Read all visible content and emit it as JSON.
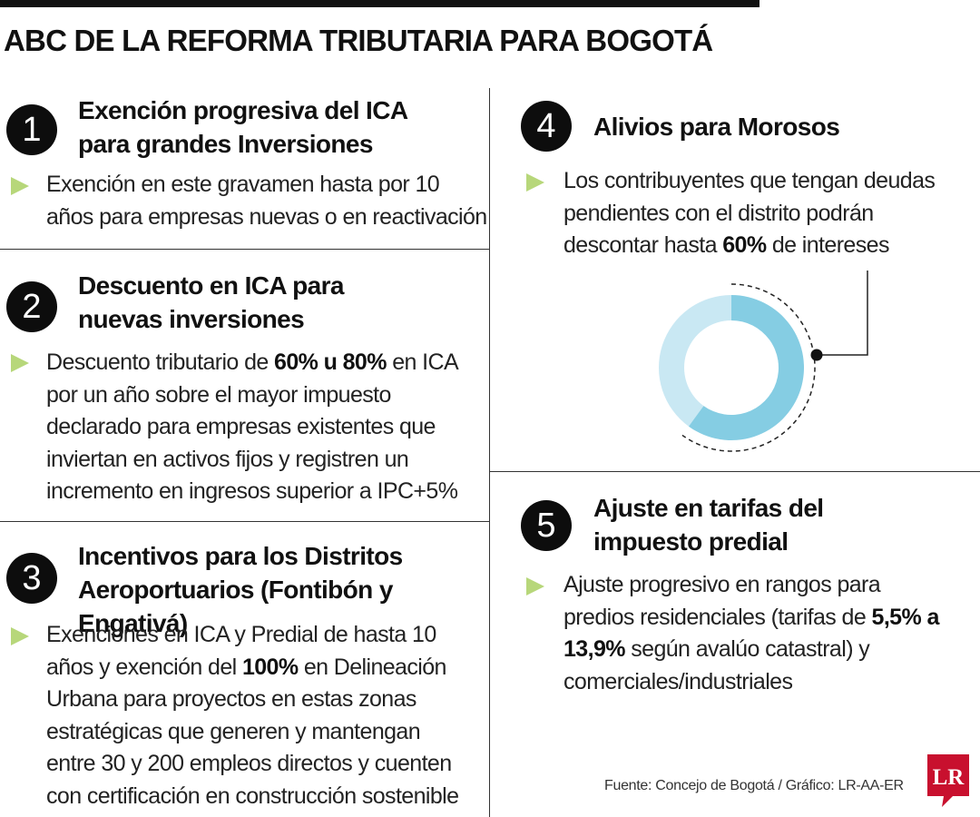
{
  "title": "ABC DE LA REFORMA TRIBUTARIA PARA BOGOTÁ",
  "sections": [
    {
      "number": "1",
      "title_lines": [
        "Exención progresiva del ICA",
        "para grandes Inversiones"
      ],
      "body": "Exención en este gravamen hasta por 10 años para empresas nuevas o en reactivación"
    },
    {
      "number": "2",
      "title_lines": [
        "Descuento en ICA para",
        "nuevas inversiones"
      ],
      "body_before": "Descuento tributario de ",
      "body_bold": "60% u 80%",
      "body_after": " en ICA por un año sobre el mayor impuesto declarado para empresas existentes que inviertan en activos fijos y registren un incremento en ingresos superior a IPC+5%"
    },
    {
      "number": "3",
      "title_lines": [
        "Incentivos para los Distritos",
        "Aeroportuarios (Fontibón y Engativá)"
      ],
      "body_before": "Exenciones en ICA y Predial de hasta 10 años y exención del ",
      "body_bold": "100%",
      "body_after": " en Delineación Urbana para proyectos en estas zonas estratégicas que generen y mantengan entre 30 y 200 empleos directos y cuenten con certificación en construcción sostenible"
    },
    {
      "number": "4",
      "title_lines": [
        "Alivios para Morosos"
      ],
      "body_before": "Los contribuyentes que tengan deudas pendientes con el distrito podrán descontar hasta ",
      "body_bold": "60%",
      "body_after": " de intereses"
    },
    {
      "number": "5",
      "title_lines": [
        "Ajuste en tarifas del",
        "impuesto predial"
      ],
      "body_before": "Ajuste progresivo en rangos para predios residenciales (tarifas de ",
      "body_bold": "5,5% a 13,9%",
      "body_after": " según avalúo catastral) y comerciales/industriales"
    }
  ],
  "donut": {
    "highlight_fraction": 0.6,
    "colors": {
      "highlight": "#85cde3",
      "rest": "#c9e8f3",
      "bullet": "#b7d77a"
    }
  },
  "source": "Fuente: Concejo de Bogotá / Gráfico: LR-AA-ER",
  "logo_text": "LR"
}
